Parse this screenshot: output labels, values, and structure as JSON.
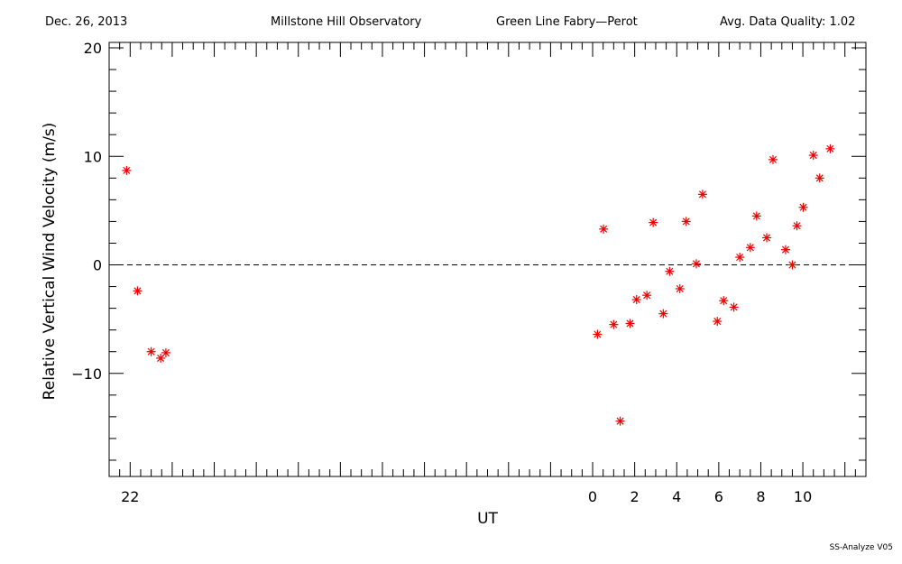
{
  "header": {
    "date": "Dec. 26, 2013",
    "observatory": "Millstone Hill Observatory",
    "instrument": "Green Line Fabry—Perot",
    "quality": "Avg. Data Quality: 1.02"
  },
  "footer": "SS-Analyze V05",
  "colors": {
    "marker": "#ee0000",
    "axis": "#000000"
  },
  "chart_data": {
    "type": "scatter",
    "xlabel": "UT",
    "ylabel": "Relative Vertical Wind Velocity (m/s)",
    "xlim": [
      -23,
      13
    ],
    "ylim": [
      -19.5,
      20.5
    ],
    "x_ticks": [
      {
        "value": -22,
        "label": "22"
      },
      {
        "value": 0,
        "label": "0"
      },
      {
        "value": 2,
        "label": "2"
      },
      {
        "value": 4,
        "label": "4"
      },
      {
        "value": 6,
        "label": "6"
      },
      {
        "value": 8,
        "label": "8"
      },
      {
        "value": 10,
        "label": "10"
      }
    ],
    "y_ticks": [
      {
        "value": 20,
        "label": "20"
      },
      {
        "value": 10,
        "label": "10"
      },
      {
        "value": 0,
        "label": "0"
      },
      {
        "value": -10,
        "label": "−10"
      }
    ],
    "zero_line": true,
    "marker": "asterisk",
    "points": [
      {
        "x": -22.17,
        "y": 8.7
      },
      {
        "x": -21.65,
        "y": -2.4
      },
      {
        "x": -21.0,
        "y": -8.0
      },
      {
        "x": -20.55,
        "y": -8.6
      },
      {
        "x": -20.3,
        "y": -8.1
      },
      {
        "x": 0.23,
        "y": -6.4
      },
      {
        "x": 0.52,
        "y": 3.3
      },
      {
        "x": 1.0,
        "y": -5.5
      },
      {
        "x": 1.31,
        "y": -14.4
      },
      {
        "x": 1.78,
        "y": -5.4
      },
      {
        "x": 2.09,
        "y": -3.2
      },
      {
        "x": 2.58,
        "y": -2.8
      },
      {
        "x": 2.88,
        "y": 3.9
      },
      {
        "x": 3.36,
        "y": -4.5
      },
      {
        "x": 3.66,
        "y": -0.6
      },
      {
        "x": 4.15,
        "y": -2.2
      },
      {
        "x": 4.45,
        "y": 4.0
      },
      {
        "x": 4.93,
        "y": 0.1
      },
      {
        "x": 5.23,
        "y": 6.5
      },
      {
        "x": 5.93,
        "y": -5.2
      },
      {
        "x": 6.23,
        "y": -3.3
      },
      {
        "x": 6.72,
        "y": -3.9
      },
      {
        "x": 7.0,
        "y": 0.7
      },
      {
        "x": 7.5,
        "y": 1.6
      },
      {
        "x": 7.8,
        "y": 4.5
      },
      {
        "x": 8.28,
        "y": 2.5
      },
      {
        "x": 8.58,
        "y": 9.7
      },
      {
        "x": 9.18,
        "y": 1.4
      },
      {
        "x": 9.5,
        "y": 0.0
      },
      {
        "x": 9.72,
        "y": 3.6
      },
      {
        "x": 10.02,
        "y": 5.3
      },
      {
        "x": 10.5,
        "y": 10.1
      },
      {
        "x": 10.8,
        "y": 8.0
      },
      {
        "x": 11.3,
        "y": 10.7
      }
    ]
  }
}
